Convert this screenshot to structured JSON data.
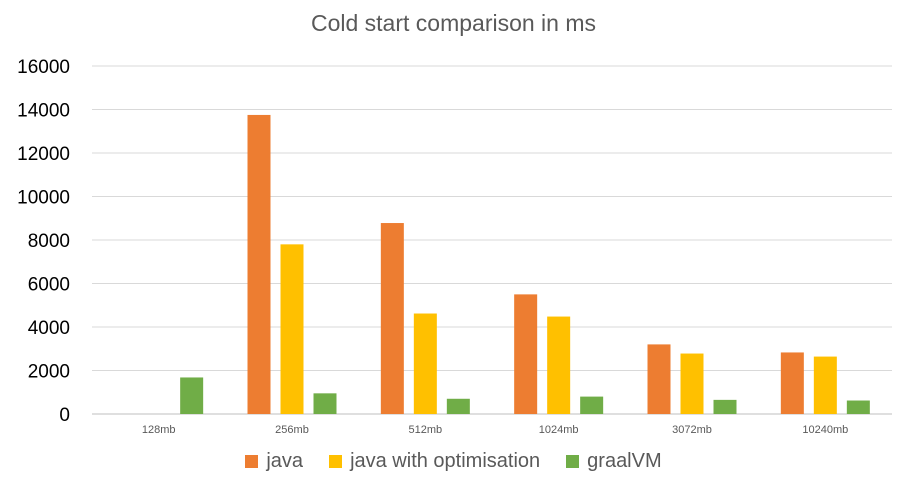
{
  "chart_data": {
    "type": "bar",
    "title": "Cold start comparison in ms",
    "categories": [
      "128mb",
      "256mb",
      "512mb",
      "1024mb",
      "3072mb",
      "10240mb"
    ],
    "series": [
      {
        "name": "java",
        "color": "#ED7D31",
        "values": [
          null,
          13750,
          8780,
          5500,
          3200,
          2830
        ]
      },
      {
        "name": "java with optimisation",
        "color": "#FFC000",
        "values": [
          null,
          7800,
          4620,
          4480,
          2780,
          2640
        ]
      },
      {
        "name": "graalVM",
        "color": "#70AD47",
        "values": [
          1680,
          950,
          700,
          800,
          650,
          620
        ]
      }
    ],
    "yticks": [
      "0",
      "2000",
      "4000",
      "6000",
      "8000",
      "10000",
      "12000",
      "14000",
      "16000"
    ],
    "ylim": [
      0,
      16000
    ],
    "grid": true,
    "legend_position": "bottom"
  }
}
